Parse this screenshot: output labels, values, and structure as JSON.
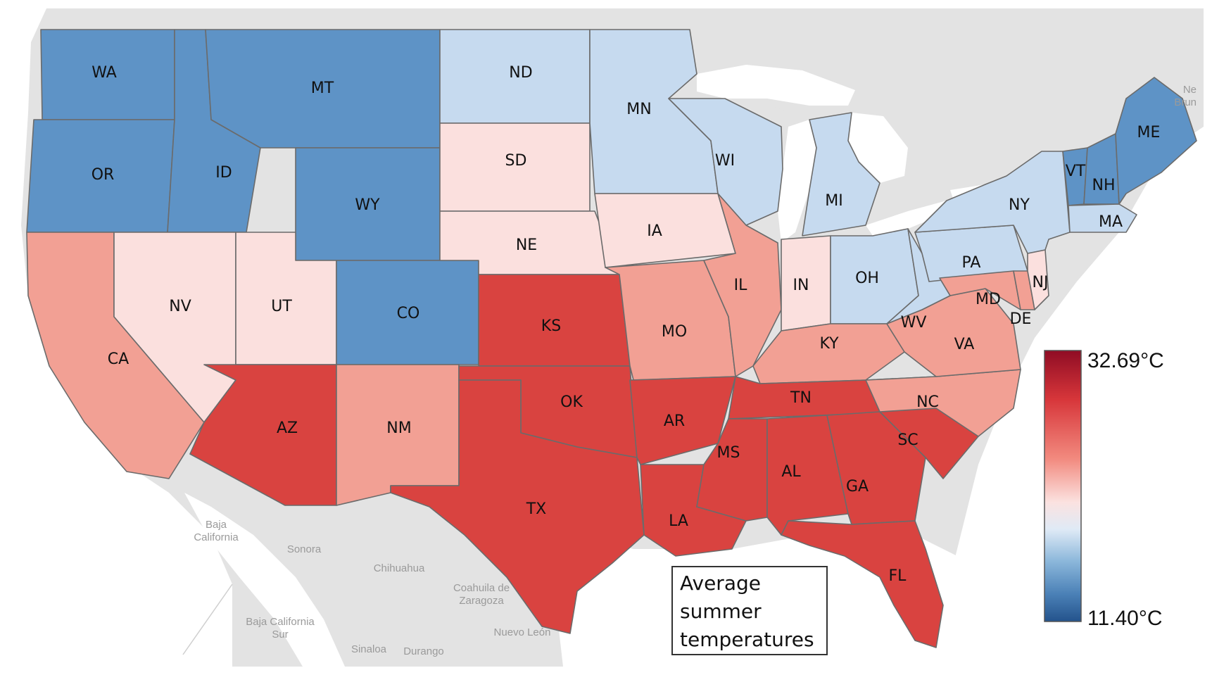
{
  "map": {
    "title_lines": [
      "Average",
      "summer",
      "temperatures"
    ],
    "legend": {
      "max_label": "32.69°C",
      "min_label": "11.40°C",
      "max_value": 32.69,
      "min_value": 11.4,
      "unit": "°C",
      "colors": [
        "#8f0c24",
        "#d7363a",
        "#f28a7f",
        "#fbe2e0",
        "#dfeaf6",
        "#8ab6da",
        "#4a80b6",
        "#24538c"
      ]
    },
    "colors": {
      "land": "#e3e3e3",
      "water": "#ffffff",
      "hot": "#d94340",
      "warm": "#f2a094",
      "mild": "#fbe0de",
      "cool": "#c6daef",
      "cold": "#5e93c6",
      "coldest": "#2d5f98"
    },
    "states": [
      {
        "abbr": "WA",
        "temp": "cold"
      },
      {
        "abbr": "MT",
        "temp": "cold"
      },
      {
        "abbr": "ND",
        "temp": "cool"
      },
      {
        "abbr": "MN",
        "temp": "cool"
      },
      {
        "abbr": "OR",
        "temp": "cold"
      },
      {
        "abbr": "ID",
        "temp": "cold"
      },
      {
        "abbr": "SD",
        "temp": "mild"
      },
      {
        "abbr": "WI",
        "temp": "cool"
      },
      {
        "abbr": "WY",
        "temp": "cold"
      },
      {
        "abbr": "MI",
        "temp": "cool"
      },
      {
        "abbr": "ME",
        "temp": "cold"
      },
      {
        "abbr": "VT",
        "temp": "cold"
      },
      {
        "abbr": "NH",
        "temp": "cold"
      },
      {
        "abbr": "NY",
        "temp": "cool"
      },
      {
        "abbr": "MA",
        "temp": "cool"
      },
      {
        "abbr": "IA",
        "temp": "mild"
      },
      {
        "abbr": "NE",
        "temp": "mild"
      },
      {
        "abbr": "PA",
        "temp": "cool"
      },
      {
        "abbr": "NJ",
        "temp": "mild"
      },
      {
        "abbr": "NV",
        "temp": "mild"
      },
      {
        "abbr": "UT",
        "temp": "mild"
      },
      {
        "abbr": "IL",
        "temp": "warm"
      },
      {
        "abbr": "IN",
        "temp": "mild"
      },
      {
        "abbr": "OH",
        "temp": "cool"
      },
      {
        "abbr": "MD",
        "temp": "warm"
      },
      {
        "abbr": "CO",
        "temp": "cold"
      },
      {
        "abbr": "DE",
        "temp": "warm"
      },
      {
        "abbr": "KS",
        "temp": "hot"
      },
      {
        "abbr": "MO",
        "temp": "warm"
      },
      {
        "abbr": "WV",
        "temp": "cool"
      },
      {
        "abbr": "KY",
        "temp": "warm"
      },
      {
        "abbr": "VA",
        "temp": "warm"
      },
      {
        "abbr": "CA",
        "temp": "warm"
      },
      {
        "abbr": "TN",
        "temp": "hot"
      },
      {
        "abbr": "NC",
        "temp": "warm"
      },
      {
        "abbr": "OK",
        "temp": "hot"
      },
      {
        "abbr": "AR",
        "temp": "hot"
      },
      {
        "abbr": "AZ",
        "temp": "hot"
      },
      {
        "abbr": "NM",
        "temp": "warm"
      },
      {
        "abbr": "SC",
        "temp": "hot"
      },
      {
        "abbr": "MS",
        "temp": "hot"
      },
      {
        "abbr": "AL",
        "temp": "hot"
      },
      {
        "abbr": "GA",
        "temp": "hot"
      },
      {
        "abbr": "TX",
        "temp": "hot"
      },
      {
        "abbr": "LA",
        "temp": "hot"
      },
      {
        "abbr": "FL",
        "temp": "hot"
      }
    ],
    "places": [
      "Baja California",
      "Sonora",
      "Chihuahua",
      "Coahuila de Zaragoza",
      "Baja California Sur",
      "Sinaloa",
      "Durango",
      "Nuevo León",
      "New Brunswick"
    ]
  }
}
